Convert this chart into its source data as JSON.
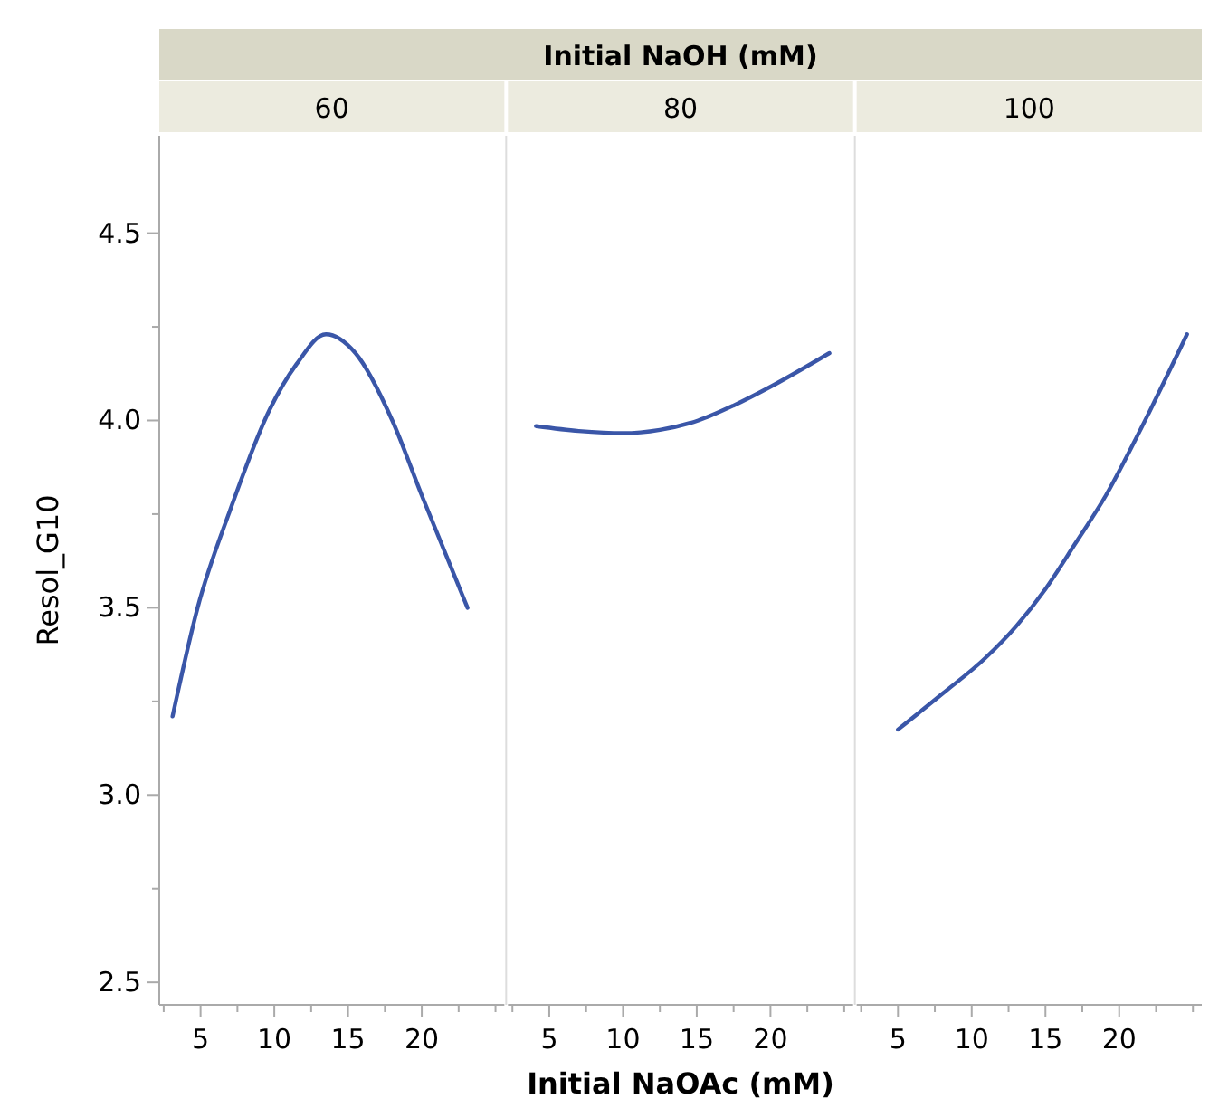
{
  "chart_data": [
    {
      "type": "line",
      "title": "60",
      "annotations": [
        "Initial NaOH (mM)"
      ],
      "ylabel": "Resol_G10",
      "xlim": [
        2.2,
        25.6
      ],
      "xticks": [
        {
          "value": 2.5,
          "label": null
        },
        5,
        {
          "value": 7.5,
          "label": null
        },
        10,
        {
          "value": 12.5,
          "label": null
        },
        15,
        {
          "value": 17.5,
          "label": null
        },
        20,
        {
          "value": 22.5,
          "label": null
        },
        {
          "value": 25,
          "label": null
        }
      ],
      "ylim": [
        2.44,
        4.76
      ],
      "yticks": [
        2.5,
        {
          "value": 2.75,
          "label": null
        },
        {
          "value": 3,
          "label": "3.0"
        },
        {
          "value": 3.25,
          "label": null
        },
        3.5,
        {
          "value": 3.75,
          "label": null
        },
        {
          "value": 4,
          "label": "4.0"
        },
        {
          "value": 4.25,
          "label": null
        },
        4.5
      ],
      "grid": false,
      "series": [
        {
          "color": "#3a56a8",
          "x": [
            3.1,
            4.8,
            7,
            9.7,
            11.5,
            13.5,
            15.5,
            18,
            20,
            23.1
          ],
          "values": [
            3.21,
            3.5,
            3.76,
            4.03,
            4.15,
            4.23,
            4.18,
            4.0,
            3.8,
            3.5
          ]
        }
      ]
    },
    {
      "type": "line",
      "title": "80",
      "xlabel": "Initial NaOAc (mM)",
      "tick_labels": "x",
      "xlim": [
        2.2,
        25.6
      ],
      "xticks": [
        {
          "value": 2.5,
          "label": null
        },
        5,
        {
          "value": 7.5,
          "label": null
        },
        10,
        {
          "value": 12.5,
          "label": null
        },
        15,
        {
          "value": 17.5,
          "label": null
        },
        20,
        {
          "value": 22.5,
          "label": null
        },
        {
          "value": 25,
          "label": null
        }
      ],
      "ylim": [
        2.44,
        4.76
      ],
      "grid": false,
      "series": [
        {
          "color": "#3a56a8",
          "x": [
            4.1,
            7,
            10,
            12.5,
            15.1,
            17.5,
            20,
            24
          ],
          "values": [
            3.985,
            3.972,
            3.966,
            3.975,
            4.0,
            4.04,
            4.09,
            4.18
          ]
        }
      ]
    },
    {
      "type": "line",
      "title": "100",
      "tick_labels": "x",
      "xlim": [
        2.2,
        25.6
      ],
      "xticks": [
        {
          "value": 2.5,
          "label": null
        },
        5,
        {
          "value": 7.5,
          "label": null
        },
        10,
        {
          "value": 12.5,
          "label": null
        },
        15,
        {
          "value": 17.5,
          "label": null
        },
        20,
        {
          "value": 22.5,
          "label": null
        },
        {
          "value": 25,
          "label": null
        }
      ],
      "ylim": [
        2.44,
        4.76
      ],
      "grid": false,
      "series": [
        {
          "color": "#3a56a8",
          "x": [
            5,
            8,
            10.9,
            13,
            15,
            17,
            19.1,
            21.5,
            24.6
          ],
          "values": [
            3.175,
            3.27,
            3.365,
            3.45,
            3.55,
            3.67,
            3.8,
            3.98,
            4.23
          ]
        }
      ]
    }
  ]
}
